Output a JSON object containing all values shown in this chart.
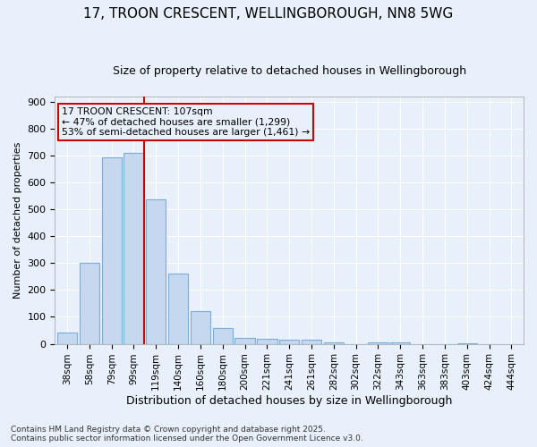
{
  "title_line1": "17, TROON CRESCENT, WELLINGBOROUGH, NN8 5WG",
  "title_line2": "Size of property relative to detached houses in Wellingborough",
  "xlabel": "Distribution of detached houses by size in Wellingborough",
  "ylabel": "Number of detached properties",
  "categories": [
    "38sqm",
    "58sqm",
    "79sqm",
    "99sqm",
    "119sqm",
    "140sqm",
    "160sqm",
    "180sqm",
    "200sqm",
    "221sqm",
    "241sqm",
    "261sqm",
    "282sqm",
    "302sqm",
    "322sqm",
    "343sqm",
    "363sqm",
    "383sqm",
    "403sqm",
    "424sqm",
    "444sqm"
  ],
  "values": [
    43,
    300,
    693,
    710,
    537,
    260,
    122,
    58,
    22,
    18,
    15,
    15,
    5,
    0,
    5,
    5,
    0,
    0,
    2,
    0,
    0
  ],
  "bar_color": "#c5d8f0",
  "bar_edge_color": "#7badd6",
  "background_color": "#e8f0fb",
  "grid_color": "#ffffff",
  "vline_color": "#cc0000",
  "annotation_text": "17 TROON CRESCENT: 107sqm\n← 47% of detached houses are smaller (1,299)\n53% of semi-detached houses are larger (1,461) →",
  "annotation_box_facecolor": "#e8f0fb",
  "annotation_box_edgecolor": "#cc0000",
  "footer": "Contains HM Land Registry data © Crown copyright and database right 2025.\nContains public sector information licensed under the Open Government Licence v3.0.",
  "ylim": [
    0,
    920
  ],
  "yticks": [
    0,
    100,
    200,
    300,
    400,
    500,
    600,
    700,
    800,
    900
  ],
  "title_fontsize": 11,
  "subtitle_fontsize": 9,
  "xlabel_fontsize": 9,
  "ylabel_fontsize": 8,
  "tick_fontsize": 8,
  "xtick_fontsize": 7.5,
  "footer_fontsize": 6.5
}
